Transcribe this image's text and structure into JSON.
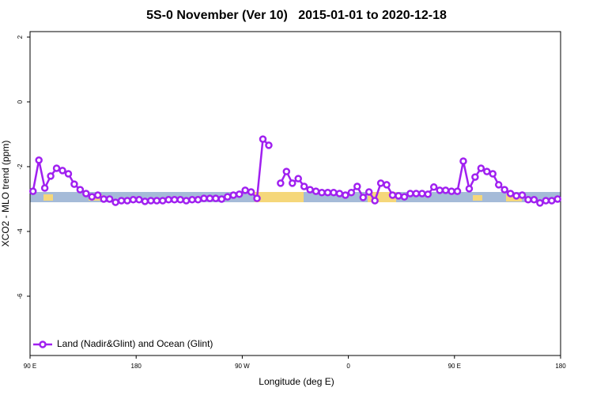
{
  "chart_data": {
    "type": "line",
    "title": "5S-0 November (Ver 10)   2015-01-01 to 2020-12-18",
    "x_label": "Longitude (deg E)",
    "y_label": "XCO2 - MLO trend (ppm)",
    "xlim": [
      90,
      540
    ],
    "ylim": [
      -7.83,
      2.17
    ],
    "xticks": [
      {
        "value": 90,
        "label": "90 E"
      },
      {
        "value": 180,
        "label": "180"
      },
      {
        "value": 270,
        "label": "90 W"
      },
      {
        "value": 360,
        "label": "0"
      },
      {
        "value": 450,
        "label": "90 E"
      },
      {
        "value": 540,
        "label": "180"
      }
    ],
    "yticks": [
      2,
      0,
      -2,
      -4,
      -6
    ],
    "legend_position": "bottom-left",
    "x": [
      92.5,
      97.5,
      102.5,
      107.5,
      112.5,
      117.5,
      122.5,
      127.5,
      132.5,
      137.5,
      142.5,
      147.5,
      152.5,
      157.5,
      162.5,
      167.5,
      172.5,
      177.5,
      182.5,
      187.5,
      192.5,
      197.5,
      202.5,
      207.5,
      212.5,
      217.5,
      222.5,
      227.5,
      232.5,
      237.5,
      242.5,
      247.5,
      252.5,
      257.5,
      262.5,
      267.5,
      272.5,
      277.5,
      282.5,
      287.5,
      292.5,
      297.5,
      302.5,
      307.5,
      312.5,
      317.5,
      322.5,
      327.5,
      332.5,
      337.5,
      342.5,
      347.5,
      352.5,
      357.5,
      362.5,
      367.5,
      372.5,
      377.5,
      382.5,
      387.5,
      392.5,
      397.5,
      402.5,
      407.5,
      412.5,
      417.5,
      422.5,
      427.5,
      432.5,
      437.5,
      442.5,
      447.5,
      452.5,
      457.5,
      462.5,
      467.5,
      472.5,
      477.5,
      482.5,
      487.5,
      492.5,
      497.5,
      502.5,
      507.5,
      512.5,
      517.5,
      522.5,
      527.5,
      532.5,
      537.5
    ],
    "series": [
      {
        "name": "Land (Nadir&Glint) and Ocean (Glint)",
        "color": "#a020f0",
        "values": [
          -2.76,
          -1.8,
          -2.66,
          -2.29,
          -2.05,
          -2.12,
          -2.22,
          -2.54,
          -2.71,
          -2.83,
          -2.93,
          -2.88,
          -3.0,
          -3.0,
          -3.1,
          -3.05,
          -3.05,
          -3.02,
          -3.02,
          -3.07,
          -3.05,
          -3.05,
          -3.05,
          -3.02,
          -3.02,
          -3.02,
          -3.05,
          -3.02,
          -3.02,
          -2.98,
          -2.98,
          -2.98,
          -3.0,
          -2.93,
          -2.88,
          -2.85,
          -2.73,
          -2.78,
          -2.98,
          -1.15,
          -1.34,
          null,
          -2.51,
          -2.15,
          -2.51,
          -2.37,
          -2.61,
          -2.71,
          -2.76,
          -2.8,
          -2.8,
          -2.8,
          -2.83,
          -2.88,
          -2.8,
          -2.61,
          -2.95,
          -2.78,
          -3.05,
          -2.51,
          -2.56,
          -2.88,
          -2.9,
          -2.93,
          -2.83,
          -2.83,
          -2.83,
          -2.85,
          -2.63,
          -2.73,
          -2.73,
          -2.76,
          -2.76,
          -1.83,
          -2.68,
          -2.32,
          -2.05,
          -2.15,
          -2.22,
          -2.56,
          -2.71,
          -2.83,
          -2.9,
          -2.88,
          -3.02,
          -3.02,
          -3.12,
          -3.05,
          -3.05,
          -3.0
        ]
      }
    ]
  }
}
